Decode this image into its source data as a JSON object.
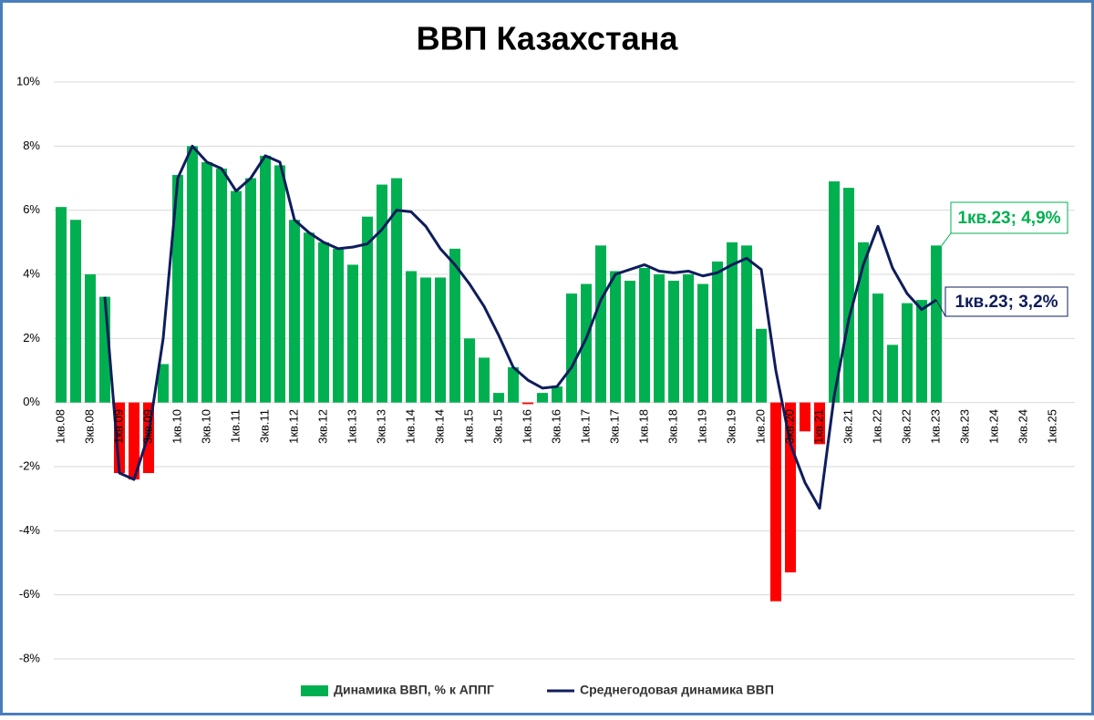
{
  "chart_data": {
    "type": "bar_line",
    "title": "ВВП Казахстана",
    "categories": [
      "1кв.08",
      null,
      "3кв.08",
      null,
      "1кв.09",
      null,
      "3кв.09",
      null,
      "1кв.10",
      null,
      "3кв.10",
      null,
      "1кв.11",
      null,
      "3кв.11",
      null,
      "1кв.12",
      null,
      "3кв.12",
      null,
      "1кв.13",
      null,
      "3кв.13",
      null,
      "1кв.14",
      null,
      "3кв.14",
      null,
      "1кв.15",
      null,
      "3кв.15",
      null,
      "1кв.16",
      null,
      "3кв.16",
      null,
      "1кв.17",
      null,
      "3кв.17",
      null,
      "1кв.18",
      null,
      "3кв.18",
      null,
      "1кв.19",
      null,
      "3кв.19",
      null,
      "1кв.20",
      null,
      "3кв.20",
      null,
      "1кв.21",
      null,
      "3кв.21",
      null,
      "1кв.22",
      null,
      "3кв.22",
      null,
      "1кв.23",
      null,
      "3кв.23",
      null,
      "1кв.24",
      null,
      "3кв.24",
      null,
      "1кв.25",
      null
    ],
    "series": [
      {
        "name": "Динамика ВВП, % к АППГ",
        "kind": "bar",
        "color": "#00b050",
        "negative_color": "#ff0000",
        "values": [
          6.1,
          5.7,
          4.0,
          3.3,
          -2.2,
          -2.4,
          -2.2,
          1.2,
          7.1,
          8.0,
          7.5,
          7.3,
          6.6,
          7.0,
          7.7,
          7.4,
          5.7,
          5.3,
          5.0,
          4.8,
          4.3,
          5.8,
          6.8,
          7.0,
          4.1,
          3.9,
          3.9,
          4.8,
          2.0,
          1.4,
          0.3,
          1.1,
          -0.05,
          0.3,
          0.5,
          3.4,
          3.7,
          4.9,
          4.1,
          3.8,
          4.2,
          4.0,
          3.8,
          4.0,
          3.7,
          4.4,
          5.0,
          4.9,
          2.3,
          -6.2,
          -5.3,
          -0.9,
          -1.3,
          6.9,
          6.7,
          5.0,
          3.4,
          1.8,
          3.1,
          3.2,
          4.9,
          null,
          null,
          null,
          null,
          null,
          null,
          null,
          null,
          null
        ]
      },
      {
        "name": "Среднегодовая динамика ВВП",
        "kind": "line",
        "color": "#0f1d5c",
        "values": [
          null,
          null,
          null,
          3.3,
          -2.2,
          -2.4,
          -1.0,
          2.0,
          7.0,
          8.0,
          7.5,
          7.3,
          6.6,
          7.0,
          7.7,
          7.5,
          5.7,
          5.3,
          5.0,
          4.8,
          4.85,
          4.95,
          5.4,
          6.0,
          5.95,
          5.5,
          4.8,
          4.3,
          3.7,
          3.0,
          2.1,
          1.1,
          0.7,
          0.45,
          0.5,
          1.1,
          2.0,
          3.2,
          4.0,
          4.15,
          4.3,
          4.1,
          4.05,
          4.1,
          3.95,
          4.05,
          4.3,
          4.5,
          4.15,
          1.0,
          -1.3,
          -2.5,
          -3.3,
          0.2,
          2.6,
          4.3,
          5.5,
          4.2,
          3.4,
          2.9,
          3.2,
          null,
          null,
          null,
          null,
          null,
          null,
          null,
          null,
          null
        ]
      }
    ],
    "annotations": [
      "1кв.23; 4,9%",
      "1кв.23; 3,2%"
    ],
    "ylim": [
      -8,
      10
    ],
    "yticks": [
      {
        "value": -8,
        "label": "-8%"
      },
      {
        "value": -6,
        "label": "-6%"
      },
      {
        "value": -4,
        "label": "-4%"
      },
      {
        "value": -2,
        "label": "-2%"
      },
      {
        "value": 0,
        "label": "0%"
      },
      {
        "value": 2,
        "label": "2%"
      },
      {
        "value": 4,
        "label": "4%"
      },
      {
        "value": 6,
        "label": "6%"
      },
      {
        "value": 8,
        "label": "8%"
      },
      {
        "value": 10,
        "label": "10%"
      }
    ],
    "grid": true,
    "legend": "bottom"
  }
}
